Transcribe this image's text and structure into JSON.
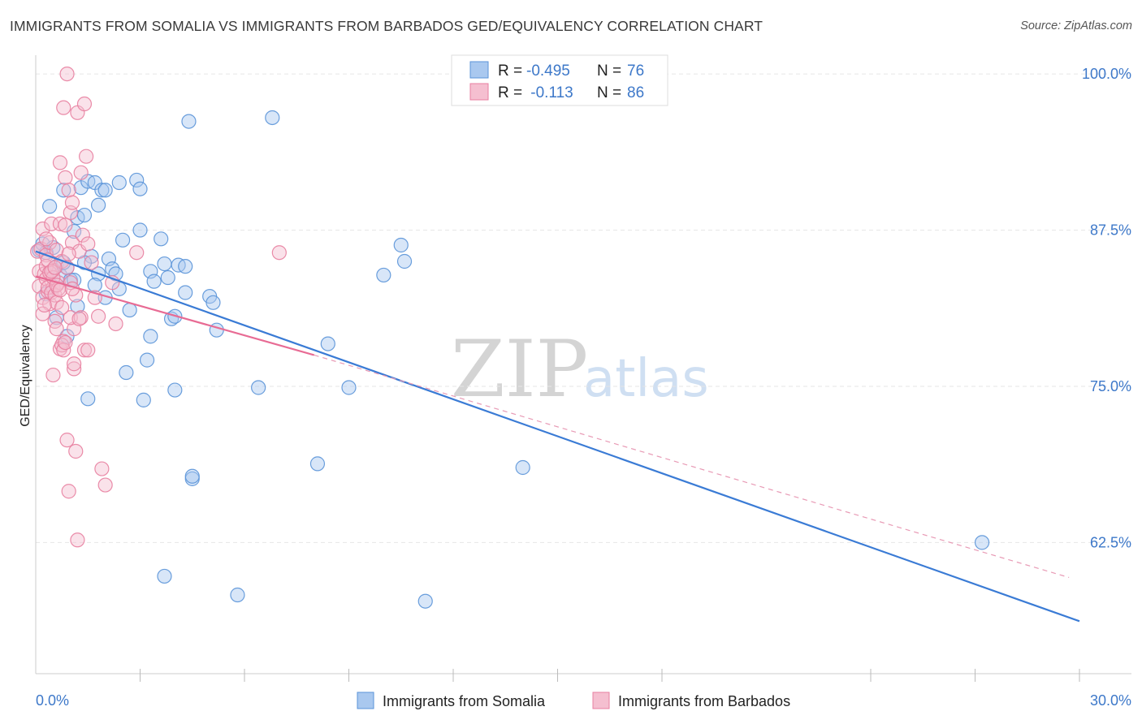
{
  "title": "IMMIGRANTS FROM SOMALIA VS IMMIGRANTS FROM BARBADOS GED/EQUIVALENCY CORRELATION CHART",
  "source": "Source: ZipAtlas.com",
  "watermark": {
    "part1": "ZIP",
    "part2": "atlas"
  },
  "chart_data": {
    "type": "scatter",
    "title": "IMMIGRANTS FROM SOMALIA VS IMMIGRANTS FROM BARBADOS GED/EQUIVALENCY CORRELATION CHART",
    "xlabel": "",
    "ylabel": "GED/Equivalency",
    "xlim": [
      0,
      30
    ],
    "ylim": [
      52,
      101.5
    ],
    "x_tick_labels": {
      "min": "0.0%",
      "max": "30.0%"
    },
    "y_ticks": [
      {
        "value": 100,
        "label": "100.0%"
      },
      {
        "value": 87.5,
        "label": "87.5%"
      },
      {
        "value": 75,
        "label": "75.0%"
      },
      {
        "value": 62.5,
        "label": "62.5%"
      }
    ],
    "x_minor_ticks": [
      3,
      6,
      9,
      12,
      15,
      18,
      24,
      27,
      30
    ],
    "legend": {
      "entries": [
        {
          "r_label": "R =",
          "r": "-0.495",
          "n_label": "N =",
          "n": "76"
        },
        {
          "r_label": "R =",
          "r": " -0.113",
          "n_label": "N =",
          "n": "86"
        }
      ]
    },
    "series": [
      {
        "name": "Immigrants from Somalia",
        "color": "#5a93d8",
        "fill": "#a9c8ef",
        "trend": {
          "x0": 0,
          "y0": 85.8,
          "x1": 30,
          "y1": 56.2,
          "style": "solid",
          "color": "#3a7bd5"
        },
        "points": [
          [
            0.1,
            85.9
          ],
          [
            0.2,
            86.4
          ],
          [
            0.3,
            85.7
          ],
          [
            0.4,
            89.4
          ],
          [
            0.5,
            86.1
          ],
          [
            0.6,
            84.6
          ],
          [
            0.7,
            83.9
          ],
          [
            0.8,
            90.7
          ],
          [
            0.9,
            84.5
          ],
          [
            1.0,
            83.5
          ],
          [
            1.1,
            87.4
          ],
          [
            1.2,
            88.5
          ],
          [
            1.3,
            90.9
          ],
          [
            1.4,
            88.7
          ],
          [
            1.5,
            91.4
          ],
          [
            1.6,
            85.4
          ],
          [
            1.7,
            91.3
          ],
          [
            1.8,
            89.5
          ],
          [
            1.9,
            90.7
          ],
          [
            2.0,
            90.7
          ],
          [
            2.1,
            85.2
          ],
          [
            2.2,
            84.4
          ],
          [
            2.4,
            91.3
          ],
          [
            2.5,
            86.7
          ],
          [
            2.7,
            81.1
          ],
          [
            2.9,
            91.5
          ],
          [
            3.0,
            87.5
          ],
          [
            3.0,
            90.8
          ],
          [
            3.3,
            84.2
          ],
          [
            3.4,
            83.4
          ],
          [
            3.6,
            86.8
          ],
          [
            3.7,
            84.8
          ],
          [
            3.8,
            83.7
          ],
          [
            3.9,
            80.4
          ],
          [
            4.0,
            80.6
          ],
          [
            4.1,
            84.7
          ],
          [
            4.3,
            84.6
          ],
          [
            4.3,
            82.5
          ],
          [
            4.4,
            96.2
          ],
          [
            4.5,
            67.6
          ],
          [
            4.5,
            67.8
          ],
          [
            5.0,
            82.2
          ],
          [
            5.1,
            81.7
          ],
          [
            5.2,
            79.5
          ],
          [
            5.8,
            58.3
          ],
          [
            6.4,
            74.9
          ],
          [
            6.8,
            96.5
          ],
          [
            8.1,
            68.8
          ],
          [
            8.4,
            78.4
          ],
          [
            9.0,
            74.9
          ],
          [
            10.0,
            83.9
          ],
          [
            10.5,
            86.3
          ],
          [
            10.6,
            85.0
          ],
          [
            11.2,
            57.8
          ],
          [
            14.0,
            68.5
          ],
          [
            0.3,
            82.4
          ],
          [
            0.6,
            80.5
          ],
          [
            0.9,
            79.0
          ],
          [
            1.2,
            81.4
          ],
          [
            1.5,
            74.0
          ],
          [
            2.0,
            82.1
          ],
          [
            2.6,
            76.1
          ],
          [
            3.1,
            73.9
          ],
          [
            3.2,
            77.1
          ],
          [
            3.3,
            79.0
          ],
          [
            4.0,
            74.7
          ],
          [
            3.7,
            59.8
          ],
          [
            27.2,
            62.5
          ],
          [
            0.5,
            84.3
          ],
          [
            0.8,
            84.9
          ],
          [
            1.1,
            83.5
          ],
          [
            1.4,
            84.9
          ],
          [
            1.8,
            84.0
          ],
          [
            2.3,
            84.0
          ],
          [
            2.4,
            82.8
          ],
          [
            1.7,
            83.1
          ]
        ]
      },
      {
        "name": "Immigrants from Barbados",
        "color": "#e87fa0",
        "fill": "#f5bfd0",
        "trend": {
          "x0": 0,
          "y0": 83.8,
          "x1": 8,
          "y1": 77.5,
          "style": "solid",
          "color": "#e86b94"
        },
        "trend_extension": {
          "x0": 8,
          "y0": 77.5,
          "x1": 29.7,
          "y1": 59.7,
          "style": "dashed",
          "color": "#e89ab5"
        },
        "points": [
          [
            0.05,
            85.8
          ],
          [
            0.1,
            84.2
          ],
          [
            0.1,
            83.0
          ],
          [
            0.15,
            86.0
          ],
          [
            0.2,
            82.1
          ],
          [
            0.2,
            87.6
          ],
          [
            0.25,
            84.0
          ],
          [
            0.3,
            85.5
          ],
          [
            0.3,
            83.6
          ],
          [
            0.35,
            82.6
          ],
          [
            0.4,
            86.5
          ],
          [
            0.4,
            81.6
          ],
          [
            0.45,
            88.0
          ],
          [
            0.5,
            84.3
          ],
          [
            0.5,
            82.9
          ],
          [
            0.55,
            80.2
          ],
          [
            0.6,
            85.9
          ],
          [
            0.6,
            79.6
          ],
          [
            0.65,
            83.3
          ],
          [
            0.7,
            92.9
          ],
          [
            0.7,
            88.0
          ],
          [
            0.75,
            85.0
          ],
          [
            0.8,
            97.3
          ],
          [
            0.8,
            78.6
          ],
          [
            0.85,
            91.7
          ],
          [
            0.9,
            100.0
          ],
          [
            0.9,
            84.5
          ],
          [
            0.95,
            90.7
          ],
          [
            1.0,
            88.9
          ],
          [
            1.0,
            83.3
          ],
          [
            1.05,
            86.5
          ],
          [
            1.1,
            79.6
          ],
          [
            1.1,
            76.4
          ],
          [
            1.15,
            82.3
          ],
          [
            1.2,
            96.9
          ],
          [
            1.25,
            85.8
          ],
          [
            1.3,
            92.1
          ],
          [
            1.35,
            87.1
          ],
          [
            1.4,
            97.6
          ],
          [
            1.45,
            93.4
          ],
          [
            1.5,
            86.4
          ],
          [
            1.6,
            84.9
          ],
          [
            1.7,
            82.1
          ],
          [
            1.8,
            80.6
          ],
          [
            1.9,
            68.4
          ],
          [
            2.0,
            67.1
          ],
          [
            2.2,
            83.3
          ],
          [
            2.9,
            85.7
          ],
          [
            7.0,
            85.7
          ],
          [
            0.3,
            84.6
          ],
          [
            0.35,
            82.9
          ],
          [
            0.4,
            84.1
          ],
          [
            0.45,
            82.5
          ],
          [
            0.5,
            83.7
          ],
          [
            0.55,
            82.3
          ],
          [
            0.6,
            81.7
          ],
          [
            0.65,
            82.8
          ],
          [
            0.7,
            78.0
          ],
          [
            0.75,
            78.3
          ],
          [
            0.8,
            77.9
          ],
          [
            0.85,
            78.5
          ],
          [
            0.9,
            70.7
          ],
          [
            0.95,
            66.6
          ],
          [
            1.0,
            80.5
          ],
          [
            1.05,
            89.7
          ],
          [
            1.1,
            76.8
          ],
          [
            1.15,
            69.8
          ],
          [
            1.2,
            62.7
          ],
          [
            1.3,
            80.5
          ],
          [
            1.4,
            77.9
          ],
          [
            1.5,
            77.9
          ],
          [
            2.3,
            80.0
          ],
          [
            0.2,
            80.8
          ],
          [
            0.25,
            81.5
          ],
          [
            0.3,
            86.8
          ],
          [
            0.35,
            85.1
          ],
          [
            0.45,
            84.2
          ],
          [
            0.55,
            84.5
          ],
          [
            0.6,
            83.1
          ],
          [
            0.7,
            82.7
          ],
          [
            0.75,
            81.3
          ],
          [
            0.85,
            87.9
          ],
          [
            0.95,
            85.6
          ],
          [
            1.05,
            82.8
          ],
          [
            1.25,
            80.4
          ],
          [
            0.5,
            75.9
          ]
        ]
      }
    ]
  },
  "bottom_legend": [
    "Immigrants from Somalia",
    "Immigrants from Barbados"
  ]
}
